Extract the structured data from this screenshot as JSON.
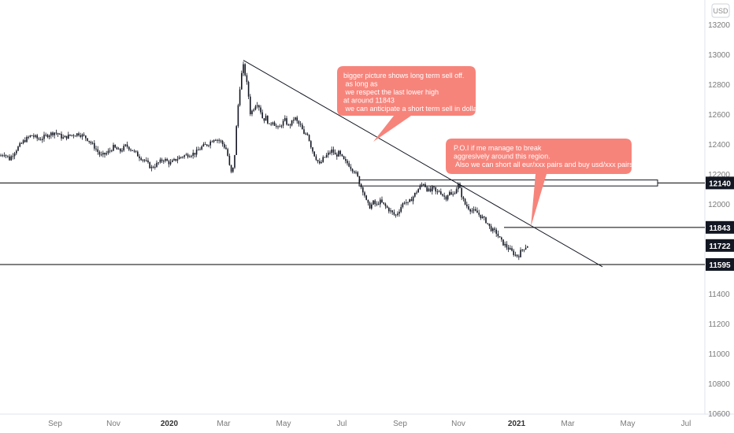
{
  "chart_data": {
    "type": "candlestick",
    "currency": "USD",
    "y_ticks": [
      10600,
      10800,
      11000,
      11200,
      11400,
      12000,
      12200,
      12400,
      12600,
      12800,
      13000,
      13200
    ],
    "x_ticks": [
      {
        "label": "Sep",
        "bold": false
      },
      {
        "label": "Nov",
        "bold": false
      },
      {
        "label": "2020",
        "bold": true
      },
      {
        "label": "Mar",
        "bold": false
      },
      {
        "label": "May",
        "bold": false
      },
      {
        "label": "Jul",
        "bold": false
      },
      {
        "label": "Sep",
        "bold": false
      },
      {
        "label": "Nov",
        "bold": false
      },
      {
        "label": "2021",
        "bold": true
      },
      {
        "label": "Mar",
        "bold": false
      },
      {
        "label": "May",
        "bold": false
      },
      {
        "label": "Jul",
        "bold": false
      }
    ],
    "y_range": [
      10500,
      13300
    ],
    "price_path": [
      [
        0,
        12320
      ],
      [
        5,
        12340
      ],
      [
        12,
        12300
      ],
      [
        20,
        12360
      ],
      [
        30,
        12420
      ],
      [
        40,
        12460
      ],
      [
        50,
        12430
      ],
      [
        60,
        12460
      ],
      [
        70,
        12480
      ],
      [
        80,
        12440
      ],
      [
        90,
        12460
      ],
      [
        100,
        12470
      ],
      [
        110,
        12440
      ],
      [
        120,
        12380
      ],
      [
        128,
        12320
      ],
      [
        136,
        12340
      ],
      [
        144,
        12380
      ],
      [
        152,
        12350
      ],
      [
        160,
        12390
      ],
      [
        168,
        12360
      ],
      [
        176,
        12320
      ],
      [
        184,
        12290
      ],
      [
        192,
        12240
      ],
      [
        200,
        12270
      ],
      [
        208,
        12300
      ],
      [
        216,
        12270
      ],
      [
        224,
        12300
      ],
      [
        232,
        12320
      ],
      [
        240,
        12330
      ],
      [
        248,
        12340
      ],
      [
        256,
        12380
      ],
      [
        264,
        12400
      ],
      [
        272,
        12440
      ],
      [
        280,
        12420
      ],
      [
        288,
        12360
      ],
      [
        293,
        12200
      ],
      [
        297,
        12250
      ],
      [
        300,
        12500
      ],
      [
        303,
        12700
      ],
      [
        306,
        12850
      ],
      [
        309,
        12920
      ],
      [
        312,
        12850
      ],
      [
        315,
        12750
      ],
      [
        318,
        12600
      ],
      [
        322,
        12640
      ],
      [
        326,
        12680
      ],
      [
        330,
        12640
      ],
      [
        334,
        12560
      ],
      [
        338,
        12580
      ],
      [
        342,
        12520
      ],
      [
        346,
        12560
      ],
      [
        350,
        12520
      ],
      [
        354,
        12500
      ],
      [
        358,
        12540
      ],
      [
        362,
        12560
      ],
      [
        366,
        12520
      ],
      [
        370,
        12540
      ],
      [
        374,
        12580
      ],
      [
        378,
        12540
      ],
      [
        382,
        12520
      ],
      [
        386,
        12460
      ],
      [
        390,
        12480
      ],
      [
        394,
        12400
      ],
      [
        398,
        12340
      ],
      [
        402,
        12300
      ],
      [
        406,
        12260
      ],
      [
        410,
        12300
      ],
      [
        414,
        12320
      ],
      [
        418,
        12340
      ],
      [
        422,
        12360
      ],
      [
        426,
        12320
      ],
      [
        430,
        12340
      ],
      [
        434,
        12310
      ],
      [
        438,
        12280
      ],
      [
        442,
        12270
      ],
      [
        446,
        12240
      ],
      [
        450,
        12220
      ],
      [
        454,
        12180
      ],
      [
        458,
        12120
      ],
      [
        462,
        12080
      ],
      [
        466,
        12000
      ],
      [
        470,
        11980
      ],
      [
        474,
        12010
      ],
      [
        478,
        11990
      ],
      [
        482,
        12020
      ],
      [
        486,
        12000
      ],
      [
        490,
        11980
      ],
      [
        494,
        11960
      ],
      [
        498,
        11940
      ],
      [
        502,
        11920
      ],
      [
        506,
        11950
      ],
      [
        510,
        11990
      ],
      [
        514,
        12020
      ],
      [
        518,
        12000
      ],
      [
        522,
        12030
      ],
      [
        526,
        12060
      ],
      [
        530,
        12090
      ],
      [
        534,
        12120
      ],
      [
        538,
        12140
      ],
      [
        542,
        12100
      ],
      [
        546,
        12080
      ],
      [
        550,
        12110
      ],
      [
        554,
        12070
      ],
      [
        558,
        12090
      ],
      [
        562,
        12060
      ],
      [
        566,
        12040
      ],
      [
        570,
        12080
      ],
      [
        574,
        12050
      ],
      [
        578,
        12090
      ],
      [
        582,
        12130
      ],
      [
        586,
        12060
      ],
      [
        590,
        12000
      ],
      [
        594,
        11980
      ],
      [
        598,
        11960
      ],
      [
        602,
        11950
      ],
      [
        606,
        11940
      ],
      [
        610,
        11920
      ],
      [
        614,
        11900
      ],
      [
        618,
        11880
      ],
      [
        622,
        11840
      ],
      [
        626,
        11820
      ],
      [
        630,
        11810
      ],
      [
        634,
        11770
      ],
      [
        638,
        11740
      ],
      [
        642,
        11720
      ],
      [
        646,
        11700
      ],
      [
        650,
        11680
      ],
      [
        654,
        11660
      ],
      [
        658,
        11650
      ],
      [
        662,
        11690
      ],
      [
        666,
        11710
      ],
      [
        670,
        11722
      ]
    ],
    "horizontal_levels": [
      {
        "value": 12140,
        "label": "12140",
        "extent": "full"
      },
      {
        "value": 11843,
        "label": "11843",
        "extent": "partial"
      },
      {
        "value": 11595,
        "label": "11595",
        "extent": "full"
      }
    ],
    "current_price": {
      "value": 11722,
      "label": "11722"
    },
    "trend_line": {
      "start": [
        309,
        12960
      ],
      "end": [
        765,
        11580
      ]
    },
    "zone": {
      "from": [
        456,
        12160
      ],
      "to": [
        835,
        12120
      ]
    },
    "annotations": [
      {
        "lines": [
          "bigger picture shows long term sell off.",
          "   as long as",
          "   we respect the last lower high",
          "at around 11843",
          "   we can anticipate a short term sell in dollar"
        ]
      },
      {
        "lines": [
          "P.O.I if me manage to break",
          "aggresively around this region.",
          "   Also we can short all eur/xxx pairs and buy usd/xxx pairs"
        ]
      }
    ]
  },
  "colors": {
    "candle": "#131722",
    "line": "#000000",
    "tag_bg": "#131722",
    "note_bg": "#f7847b",
    "axis_text": "#7a7a7a"
  }
}
